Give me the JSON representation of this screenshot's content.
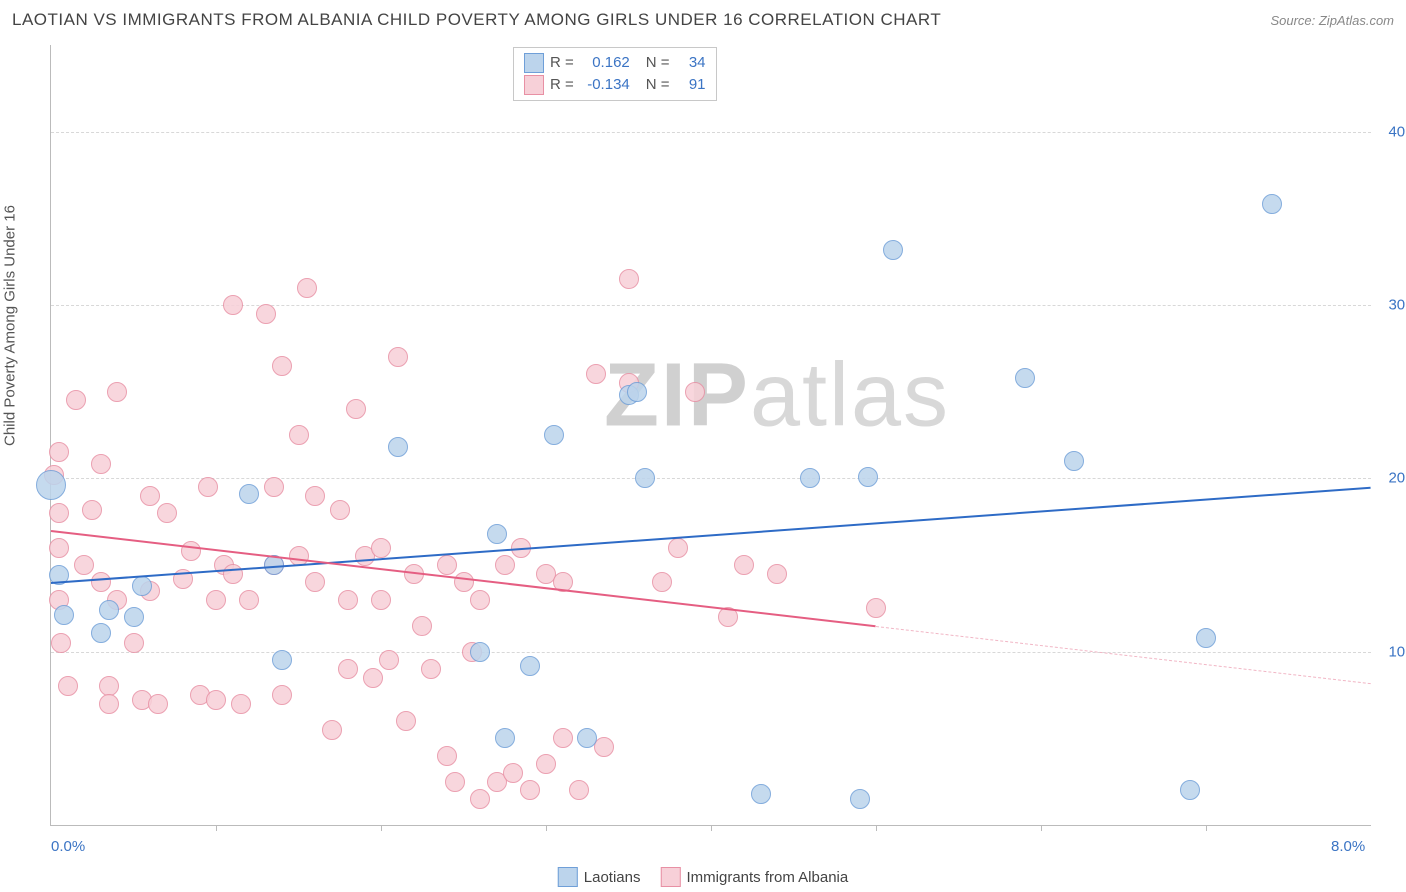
{
  "title": "LAOTIAN VS IMMIGRANTS FROM ALBANIA CHILD POVERTY AMONG GIRLS UNDER 16 CORRELATION CHART",
  "source": "Source: ZipAtlas.com",
  "watermark_a": "ZIP",
  "watermark_b": "atlas",
  "ylabel": "Child Poverty Among Girls Under 16",
  "chart": {
    "type": "scatter",
    "xlim": [
      0,
      8
    ],
    "ylim": [
      0,
      45
    ],
    "xtick_minors": [
      1,
      2,
      3,
      4,
      5,
      6,
      7
    ],
    "xtick_labels": [
      {
        "v": 0,
        "label": "0.0%"
      },
      {
        "v": 8,
        "label": "8.0%"
      }
    ],
    "ytick_labels": [
      {
        "v": 10,
        "label": "10.0%"
      },
      {
        "v": 20,
        "label": "20.0%"
      },
      {
        "v": 30,
        "label": "30.0%"
      },
      {
        "v": 40,
        "label": "40.0%"
      }
    ],
    "grid_color": "#d8d8d8",
    "background_color": "#ffffff",
    "point_radius": 9,
    "point_stroke_width": 1,
    "series": [
      {
        "name": "Laotians",
        "fill": "#bcd4ec",
        "stroke": "#6f9fd8",
        "r_value": "0.162",
        "n_value": "34",
        "trend": {
          "x1": 0,
          "y1": 14.0,
          "x2": 8,
          "y2": 19.5,
          "color": "#2e6bc6",
          "width": 2,
          "dash": false,
          "extrapolate": false
        },
        "points": [
          [
            0.0,
            19.6,
            14
          ],
          [
            0.05,
            14.4
          ],
          [
            0.08,
            12.1
          ],
          [
            0.3,
            11.1
          ],
          [
            0.35,
            12.4
          ],
          [
            0.5,
            12.0
          ],
          [
            0.55,
            13.8
          ],
          [
            1.2,
            19.1
          ],
          [
            1.35,
            15.0
          ],
          [
            1.4,
            9.5
          ],
          [
            2.1,
            21.8
          ],
          [
            2.6,
            10.0
          ],
          [
            2.7,
            16.8
          ],
          [
            2.75,
            5.0
          ],
          [
            3.05,
            22.5
          ],
          [
            2.9,
            9.2
          ],
          [
            3.5,
            24.8
          ],
          [
            3.55,
            25.0
          ],
          [
            3.6,
            20.0
          ],
          [
            3.25,
            5.0
          ],
          [
            4.3,
            1.8
          ],
          [
            4.6,
            20.0
          ],
          [
            4.9,
            1.5
          ],
          [
            5.1,
            33.2
          ],
          [
            4.95,
            20.1
          ],
          [
            5.9,
            25.8
          ],
          [
            6.2,
            21.0
          ],
          [
            7.0,
            10.8
          ],
          [
            6.9,
            2.0
          ],
          [
            7.4,
            35.8
          ]
        ]
      },
      {
        "name": "Immigrants from Albania",
        "fill": "#f7d0d8",
        "stroke": "#e890a4",
        "r_value": "-0.134",
        "n_value": "91",
        "trend": {
          "x1": 0,
          "y1": 17.0,
          "x2": 5.0,
          "y2": 11.5,
          "color": "#e55e82",
          "width": 2,
          "dash": false,
          "extrapolate": {
            "x2": 8,
            "y2": 8.2,
            "color": "#f1b6c5"
          }
        },
        "points": [
          [
            0.02,
            20.2
          ],
          [
            0.05,
            21.5
          ],
          [
            0.05,
            18.0
          ],
          [
            0.05,
            16.0
          ],
          [
            0.05,
            13.0
          ],
          [
            0.06,
            10.5
          ],
          [
            0.1,
            8.0
          ],
          [
            0.15,
            24.5
          ],
          [
            0.2,
            15.0
          ],
          [
            0.25,
            18.2
          ],
          [
            0.3,
            20.8
          ],
          [
            0.3,
            14.0
          ],
          [
            0.35,
            8.0
          ],
          [
            0.35,
            7.0
          ],
          [
            0.4,
            25.0
          ],
          [
            0.4,
            13.0
          ],
          [
            0.5,
            10.5
          ],
          [
            0.55,
            7.2
          ],
          [
            0.6,
            19.0
          ],
          [
            0.6,
            13.5
          ],
          [
            0.65,
            7.0
          ],
          [
            0.7,
            18.0
          ],
          [
            0.8,
            14.2
          ],
          [
            0.85,
            15.8
          ],
          [
            0.9,
            7.5
          ],
          [
            0.95,
            19.5
          ],
          [
            1.0,
            13.0
          ],
          [
            1.0,
            7.2
          ],
          [
            1.05,
            15.0
          ],
          [
            1.1,
            30.0
          ],
          [
            1.1,
            14.5
          ],
          [
            1.15,
            7.0
          ],
          [
            1.2,
            13.0
          ],
          [
            1.3,
            29.5
          ],
          [
            1.35,
            19.5
          ],
          [
            1.35,
            15.0
          ],
          [
            1.4,
            7.5
          ],
          [
            1.4,
            26.5
          ],
          [
            1.5,
            15.5
          ],
          [
            1.5,
            22.5
          ],
          [
            1.55,
            31.0
          ],
          [
            1.6,
            14.0
          ],
          [
            1.6,
            19.0
          ],
          [
            1.7,
            5.5
          ],
          [
            1.75,
            18.2
          ],
          [
            1.8,
            13.0
          ],
          [
            1.8,
            9.0
          ],
          [
            1.85,
            24.0
          ],
          [
            1.9,
            15.5
          ],
          [
            1.95,
            8.5
          ],
          [
            2.0,
            13.0
          ],
          [
            2.0,
            16.0
          ],
          [
            2.05,
            9.5
          ],
          [
            2.1,
            27.0
          ],
          [
            2.15,
            6.0
          ],
          [
            2.2,
            14.5
          ],
          [
            2.25,
            11.5
          ],
          [
            2.3,
            9.0
          ],
          [
            2.4,
            15.0
          ],
          [
            2.4,
            4.0
          ],
          [
            2.45,
            2.5
          ],
          [
            2.5,
            14.0
          ],
          [
            2.55,
            10.0
          ],
          [
            2.6,
            13.0
          ],
          [
            2.6,
            1.5
          ],
          [
            2.7,
            2.5
          ],
          [
            2.75,
            15.0
          ],
          [
            2.8,
            3.0
          ],
          [
            2.85,
            16.0
          ],
          [
            2.9,
            2.0
          ],
          [
            3.0,
            14.5
          ],
          [
            3.0,
            3.5
          ],
          [
            3.1,
            5.0
          ],
          [
            3.1,
            14.0
          ],
          [
            3.2,
            2.0
          ],
          [
            3.3,
            26.0
          ],
          [
            3.35,
            4.5
          ],
          [
            3.5,
            25.5
          ],
          [
            3.5,
            31.5
          ],
          [
            3.7,
            14.0
          ],
          [
            3.8,
            16.0
          ],
          [
            3.9,
            25.0
          ],
          [
            4.1,
            12.0
          ],
          [
            4.2,
            15.0
          ],
          [
            4.4,
            14.5
          ],
          [
            5.0,
            12.5
          ]
        ]
      }
    ]
  },
  "legend_labels": {
    "R": "R =",
    "N": "N ="
  }
}
